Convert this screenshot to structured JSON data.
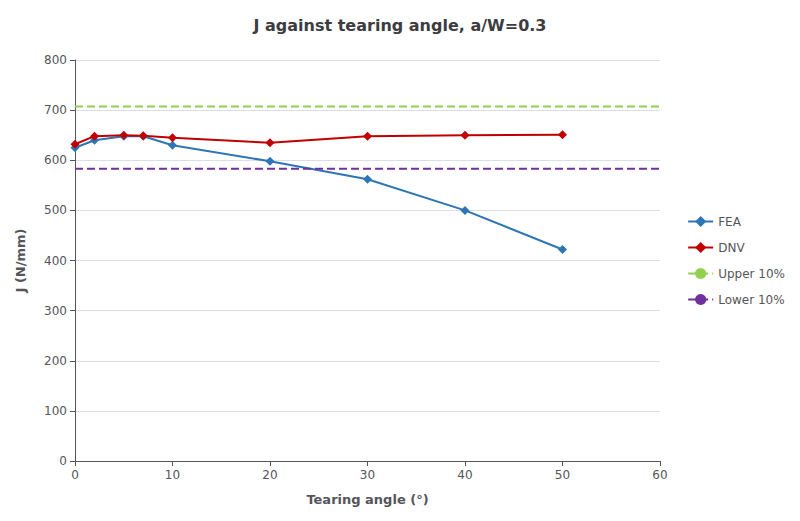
{
  "chart_data": {
    "type": "line",
    "title": "J against tearing angle, a/W=0.3",
    "xlabel": "Tearing angle (°)",
    "ylabel": "J (N/mm)",
    "series": [
      {
        "name": "FEA",
        "color": "#2E75B6",
        "marker": "diamond",
        "x": [
          0,
          2,
          5,
          7,
          10,
          20,
          30,
          40,
          50
        ],
        "values": [
          625,
          640,
          648,
          648,
          630,
          598,
          562,
          500,
          422
        ]
      },
      {
        "name": "DNV",
        "color": "#C00000",
        "marker": "diamond",
        "x": [
          0,
          2,
          5,
          7,
          10,
          20,
          30,
          40,
          50
        ],
        "values": [
          632,
          648,
          650,
          649,
          645,
          635,
          648,
          650,
          651
        ]
      },
      {
        "name": "Upper 10%",
        "color": "#92D050",
        "line_style": "dashed",
        "x": [
          0,
          60
        ],
        "values": [
          707,
          707
        ]
      },
      {
        "name": "Lower 10%",
        "color": "#7030A0",
        "line_style": "dashed",
        "x": [
          0,
          60
        ],
        "values": [
          583,
          583
        ]
      }
    ],
    "xlim": [
      0,
      60
    ],
    "ylim": [
      0,
      800
    ],
    "xticks": [
      0,
      10,
      20,
      30,
      40,
      50,
      60
    ],
    "yticks": [
      0,
      100,
      200,
      300,
      400,
      500,
      600,
      700,
      800
    ],
    "grid": "y",
    "legend": "right"
  }
}
